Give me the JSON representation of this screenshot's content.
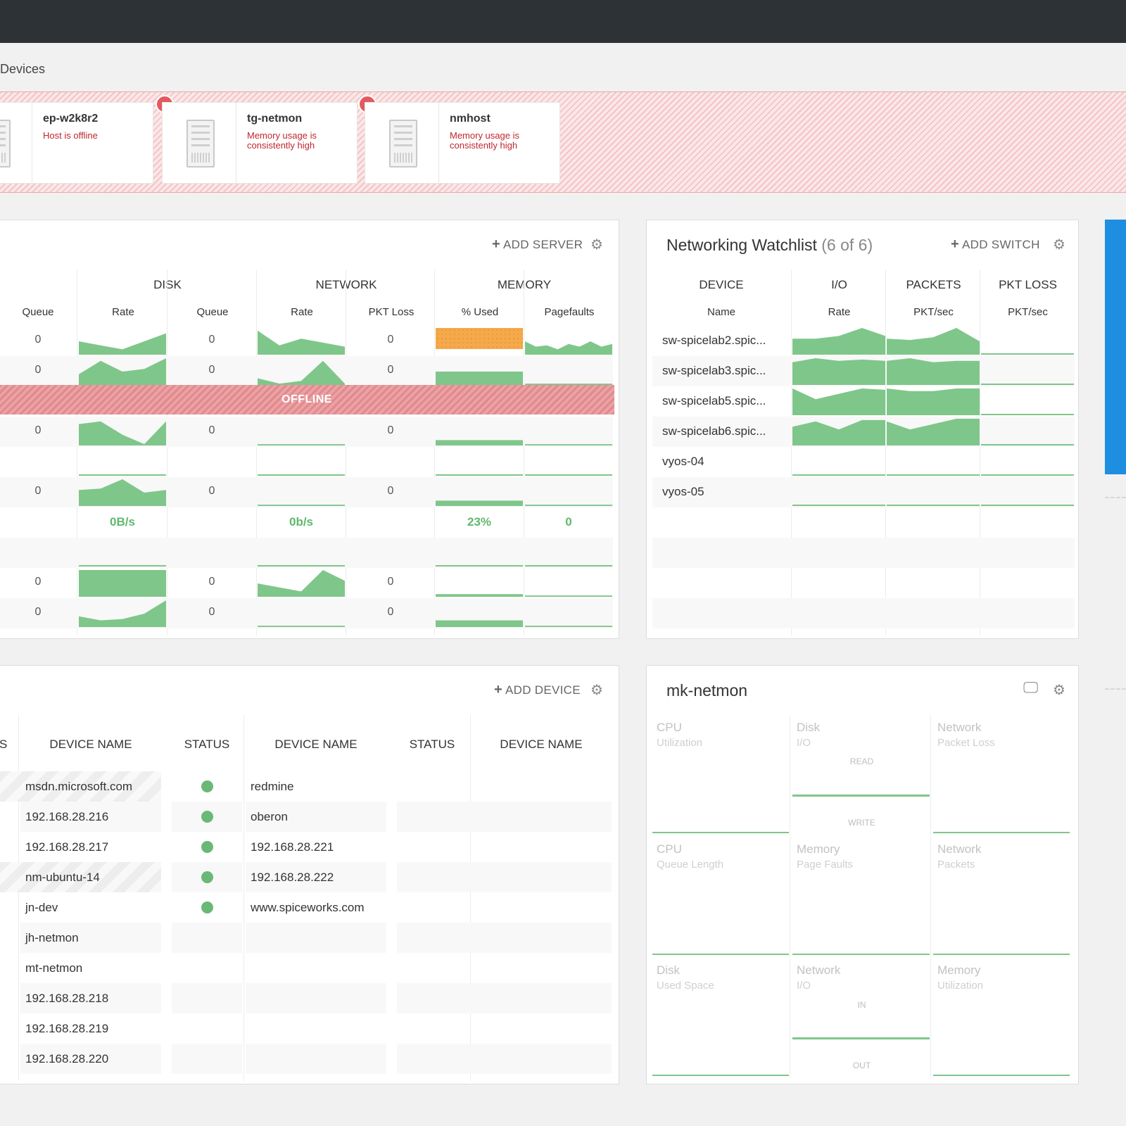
{
  "breadcrumb": "Devices",
  "alerts": [
    {
      "name": "ep-w2k8r2",
      "message": "Host is offline",
      "badge": ""
    },
    {
      "name": "tg-netmon",
      "message": "Memory usage is consistently high",
      "badge": "1"
    },
    {
      "name": "nmhost",
      "message": "Memory usage is consistently high",
      "badge": "1"
    }
  ],
  "servers": {
    "add_label": "ADD SERVER",
    "groups": {
      "disk": "DISK",
      "network": "NETWORK",
      "memory": "MEMORY"
    },
    "columns": {
      "queue": "Queue",
      "disk_rate": "Rate",
      "disk_queue": "Queue",
      "net_rate": "Rate",
      "pkt_loss": "PKT Loss",
      "pct_used": "% Used",
      "pagefaults": "Pagefaults"
    },
    "offline_label": "OFFLINE",
    "zero": "0",
    "totals": {
      "disk_rate": "0B/s",
      "net_rate": "0b/s",
      "pct_used": "23%",
      "pagefaults": "0"
    }
  },
  "networking": {
    "title": "Networking Watchlist",
    "count": "(6 of 6)",
    "add_label": "ADD SWITCH",
    "groups": {
      "device": "DEVICE",
      "io": "I/O",
      "packets": "PACKETS",
      "pkt_loss": "PKT LOSS"
    },
    "columns": {
      "name": "Name",
      "rate": "Rate",
      "pkt_sec": "PKT/sec",
      "pkt_sec2": "PKT/sec"
    },
    "devices": [
      "sw-spicelab2.spic...",
      "sw-spicelab3.spic...",
      "sw-spicelab5.spic...",
      "sw-spicelab6.spic...",
      "vyos-04",
      "vyos-05"
    ]
  },
  "devices": {
    "add_label": "ADD DEVICE",
    "cut_header": "S",
    "headers": {
      "name1": "DEVICE NAME",
      "status1": "STATUS",
      "name2": "DEVICE NAME",
      "status2": "STATUS",
      "name3": "DEVICE NAME"
    },
    "col1": [
      "msdn.microsoft.com",
      "192.168.28.216",
      "192.168.28.217",
      "nm-ubuntu-14",
      "jn-dev",
      "jh-netmon",
      "mt-netmon",
      "192.168.28.218",
      "192.168.28.219",
      "192.168.28.220"
    ],
    "col2": [
      "redmine",
      "oberon",
      "192.168.28.221",
      "192.168.28.222",
      "www.spiceworks.com"
    ]
  },
  "host": {
    "title": "mk-netmon",
    "tiles": [
      {
        "label": "CPU",
        "sub": "Utilization"
      },
      {
        "label": "Disk",
        "sub": "I/O",
        "top": "READ",
        "bottom": "WRITE"
      },
      {
        "label": "Network",
        "sub": "Packet Loss"
      },
      {
        "label": "CPU",
        "sub": "Queue Length"
      },
      {
        "label": "Memory",
        "sub": "Page Faults"
      },
      {
        "label": "Network",
        "sub": "Packets"
      },
      {
        "label": "Disk",
        "sub": "Used Space"
      },
      {
        "label": "Network",
        "sub": "I/O",
        "top": "IN",
        "bottom": "OUT"
      },
      {
        "label": "Memory",
        "sub": "Utilization"
      }
    ]
  },
  "colors": {
    "spark": "#7fc68a",
    "alert": "#c0272d",
    "highlight": "#f5a94a",
    "status_ok": "#6ab877"
  }
}
